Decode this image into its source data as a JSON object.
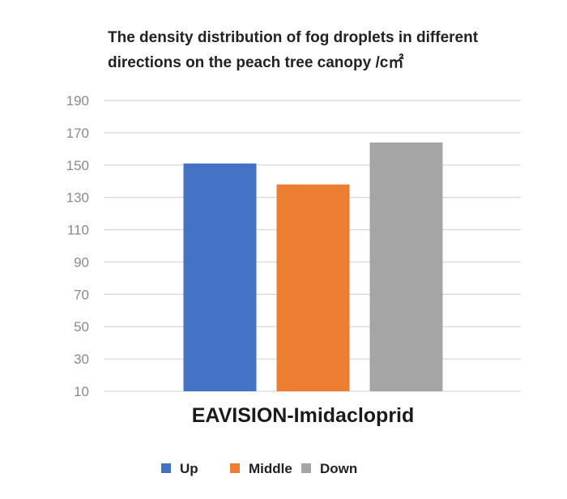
{
  "chart_data": {
    "type": "bar",
    "title_lines": [
      "The density distribution of fog droplets in different",
      "directions on the peach tree canopy /c㎡"
    ],
    "categories": [
      "EAVISION-Imidacloprid"
    ],
    "series": [
      {
        "name": "Up",
        "values": [
          151
        ],
        "color": "#4472c4"
      },
      {
        "name": "Middle",
        "values": [
          138
        ],
        "color": "#ed7d31"
      },
      {
        "name": "Down",
        "values": [
          164
        ],
        "color": "#a5a5a5"
      }
    ],
    "y_ticks": [
      "190",
      "170",
      "150",
      "130",
      "110",
      "90",
      "70",
      "50",
      "30",
      "10"
    ],
    "ylim": [
      10,
      190
    ],
    "grid": true,
    "legend_position": "bottom"
  }
}
